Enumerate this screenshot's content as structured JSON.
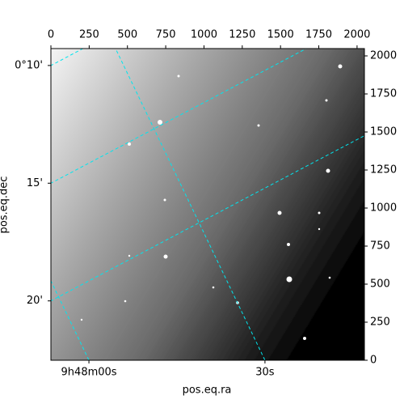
{
  "chart_data": {
    "type": "image",
    "xlabel": "pos.eq.ra",
    "ylabel": "pos.eq.dec",
    "xlim": [
      0,
      2048
    ],
    "ylim": [
      0,
      2048
    ],
    "xticks": [
      0,
      250,
      500,
      750,
      1000,
      1250,
      1500,
      1750,
      2000
    ],
    "yticks": [
      0,
      250,
      500,
      750,
      1000,
      1250,
      1500,
      1750,
      2000
    ],
    "ra_ticks": [
      {
        "value": 147,
        "label": "9h48m00s"
      },
      {
        "value": 147.125,
        "label": "30s"
      }
    ],
    "dec_ticks": [
      {
        "value": 0.1667,
        "label": "0°10'"
      },
      {
        "value": 0.25,
        "label": "15'"
      },
      {
        "value": 0.3333,
        "label": "20'"
      }
    ],
    "grid": true,
    "grid_color": "#00e5ee"
  }
}
